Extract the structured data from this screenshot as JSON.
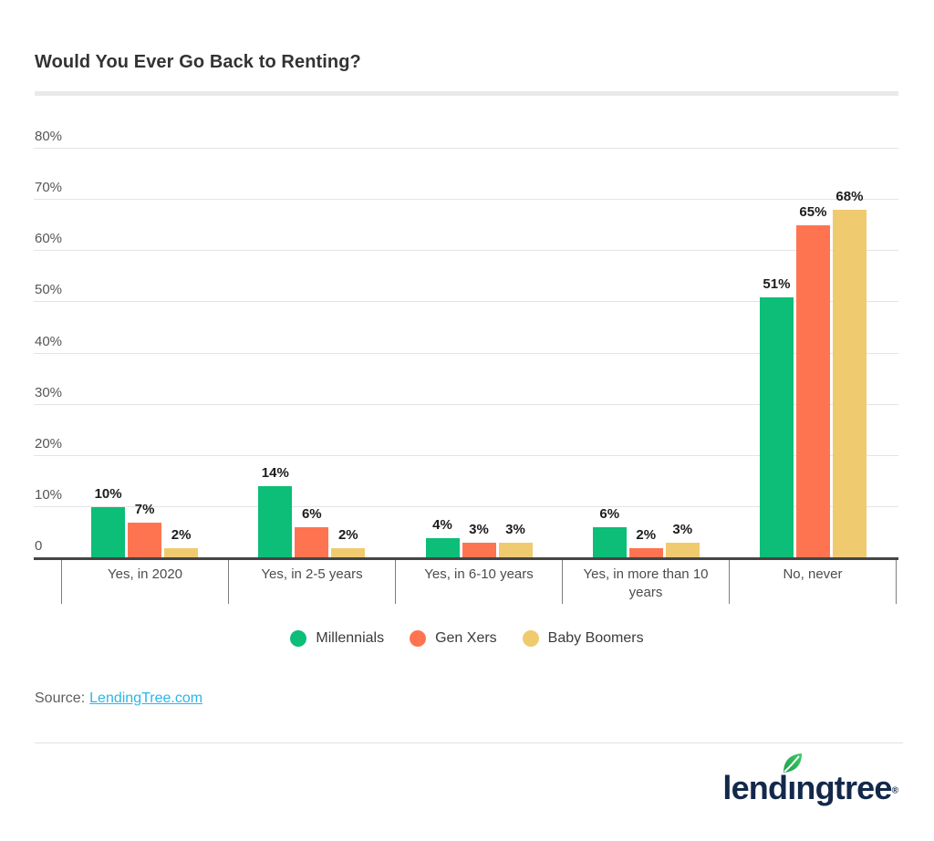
{
  "title": "Would You Ever Go Back to Renting?",
  "chart_data": {
    "type": "bar",
    "title": "Would You Ever Go Back to Renting?",
    "categories": [
      "Yes, in 2020",
      "Yes, in 2-5 years",
      "Yes, in 6-10 years",
      "Yes, in more than 10 years",
      "No, never"
    ],
    "series": [
      {
        "name": "Millennials",
        "color": "#0CBE77",
        "values": [
          10,
          14,
          4,
          6,
          51
        ]
      },
      {
        "name": "Gen Xers",
        "color": "#FF7450",
        "values": [
          7,
          6,
          3,
          2,
          65
        ]
      },
      {
        "name": "Baby Boomers",
        "color": "#F0CA6E",
        "values": [
          2,
          2,
          3,
          3,
          68
        ]
      }
    ],
    "value_label_suffix": "%",
    "xlabel": "",
    "ylabel": "",
    "ylim": [
      0,
      80
    ],
    "y_ticks": [
      {
        "value": 80,
        "label": "80%"
      },
      {
        "value": 70,
        "label": "70%"
      },
      {
        "value": 60,
        "label": "60%"
      },
      {
        "value": 50,
        "label": "50%"
      },
      {
        "value": 40,
        "label": "40%"
      },
      {
        "value": 30,
        "label": "30%"
      },
      {
        "value": 20,
        "label": "20%"
      },
      {
        "value": 10,
        "label": "10%"
      },
      {
        "value": 0,
        "label": "0"
      }
    ],
    "grid": true,
    "legend_position": "bottom"
  },
  "source": {
    "prefix": "Source:",
    "link_text": "LendingTree.com"
  },
  "logo": {
    "word": "lendingtree",
    "pre": "lend",
    "dotless_i": "ı",
    "post": "ngtree",
    "registered": "®",
    "navy": "#13294B",
    "leaf_green": "#2EB85C"
  },
  "colors": {
    "title_text": "#333333",
    "gridline": "#E4E4E4",
    "axis_line": "#454545",
    "tick_text": "#565656",
    "bar_label_text": "#1C1C1C",
    "category_text": "#4C4C4C",
    "link_blue": "#29B7E8",
    "divider": "#E9E9E9"
  }
}
